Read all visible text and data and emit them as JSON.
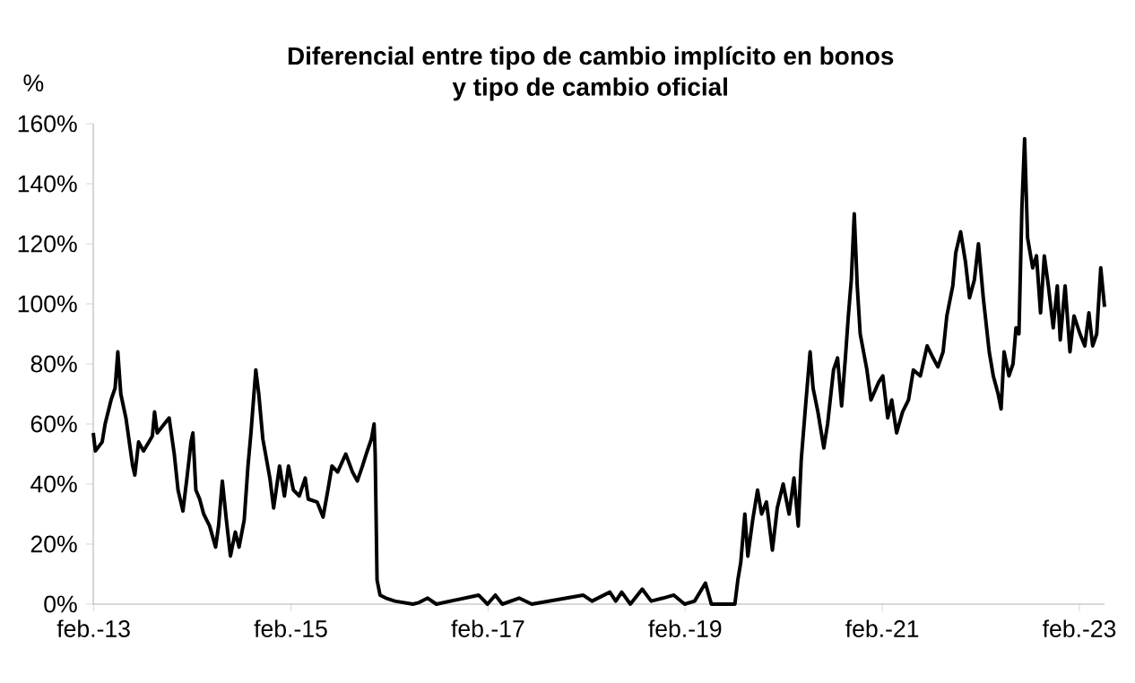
{
  "chart_data": {
    "type": "line",
    "title": "Diferencial entre tipo de cambio implícito en bonos\ny tipo de cambio oficial",
    "ylabel": "%",
    "grid": false,
    "marker": "none",
    "line_style": "solid",
    "xlim": [
      "2013-01-30",
      "2023-05-05"
    ],
    "ylim": [
      0,
      160
    ],
    "xticks": [
      {
        "value": "2013-02",
        "label": "feb.-13"
      },
      {
        "value": "2015-02",
        "label": "feb.-15"
      },
      {
        "value": "2017-02",
        "label": "feb.-17"
      },
      {
        "value": "2019-02",
        "label": "feb.-19"
      },
      {
        "value": "2021-02",
        "label": "feb.-21"
      },
      {
        "value": "2023-02",
        "label": "feb.-23"
      }
    ],
    "yticks": [
      {
        "value": 0,
        "label": "0%"
      },
      {
        "value": 20,
        "label": "20%"
      },
      {
        "value": 40,
        "label": "40%"
      },
      {
        "value": 60,
        "label": "60%"
      },
      {
        "value": 80,
        "label": "80%"
      },
      {
        "value": 100,
        "label": "100%"
      },
      {
        "value": 120,
        "label": "120%"
      },
      {
        "value": 140,
        "label": "140%"
      },
      {
        "value": 160,
        "label": "160%"
      }
    ],
    "series": [
      {
        "color": "#000000",
        "x": [
          "2013-01-30",
          "2013-02-07",
          "2013-03-04",
          "2013-03-15",
          "2013-04-06",
          "2013-04-21",
          "2013-05-01",
          "2013-05-12",
          "2013-05-31",
          "2013-06-25",
          "2013-07-03",
          "2013-07-17",
          "2013-08-04",
          "2013-09-06",
          "2013-09-14",
          "2013-09-24",
          "2013-10-20",
          "2013-11-07",
          "2013-11-26",
          "2013-12-10",
          "2013-12-28",
          "2014-01-12",
          "2014-01-27",
          "2014-02-03",
          "2014-02-14",
          "2014-02-28",
          "2014-03-15",
          "2014-04-06",
          "2014-04-28",
          "2014-05-09",
          "2014-05-23",
          "2014-06-07",
          "2014-06-22",
          "2014-07-10",
          "2014-07-24",
          "2014-08-12",
          "2014-08-26",
          "2014-09-06",
          "2014-09-24",
          "2014-10-05",
          "2014-10-20",
          "2014-11-15",
          "2014-11-29",
          "2014-12-21",
          "2015-01-08",
          "2015-01-23",
          "2015-02-10",
          "2015-03-04",
          "2015-03-26",
          "2015-04-06",
          "2015-05-09",
          "2015-05-31",
          "2015-06-18",
          "2015-07-03",
          "2015-07-24",
          "2015-08-23",
          "2015-09-17",
          "2015-10-05",
          "2015-10-24",
          "2015-11-07",
          "2015-11-26",
          "2015-12-06",
          "2015-12-10",
          "2015-12-17",
          "2015-12-28",
          "2016-01-19",
          "2016-02-21",
          "2016-04-28",
          "2016-05-20",
          "2016-06-22",
          "2016-07-24",
          "2016-12-28",
          "2017-01-30",
          "2017-02-28",
          "2017-03-26",
          "2017-05-27",
          "2017-07-13",
          "2018-01-19",
          "2018-02-21",
          "2018-04-28",
          "2018-05-20",
          "2018-06-11",
          "2018-07-13",
          "2018-08-26",
          "2018-09-28",
          "2018-11-11",
          "2018-12-21",
          "2019-01-30",
          "2019-03-08",
          "2019-04-17",
          "2019-05-09",
          "2019-08-04",
          "2019-08-15",
          "2019-08-26",
          "2019-09-10",
          "2019-09-21",
          "2019-10-09",
          "2019-10-27",
          "2019-11-11",
          "2019-11-29",
          "2019-12-21",
          "2020-01-08",
          "2020-01-30",
          "2020-02-21",
          "2020-03-10",
          "2020-03-26",
          "2020-04-06",
          "2020-04-24",
          "2020-05-09",
          "2020-05-20",
          "2020-06-07",
          "2020-06-29",
          "2020-07-13",
          "2020-08-04",
          "2020-08-19",
          "2020-09-03",
          "2020-09-17",
          "2020-09-28",
          "2020-10-09",
          "2020-10-20",
          "2020-10-31",
          "2020-11-11",
          "2020-12-06",
          "2020-12-21",
          "2021-01-19",
          "2021-02-03",
          "2021-02-21",
          "2021-03-08",
          "2021-03-26",
          "2021-04-17",
          "2021-05-09",
          "2021-05-27",
          "2021-06-22",
          "2021-07-17",
          "2021-08-08",
          "2021-08-26",
          "2021-09-14",
          "2021-09-28",
          "2021-10-20",
          "2021-10-31",
          "2021-11-18",
          "2021-12-06",
          "2021-12-21",
          "2022-01-08",
          "2022-01-23",
          "2022-02-10",
          "2022-03-04",
          "2022-03-19",
          "2022-04-06",
          "2022-04-17",
          "2022-04-28",
          "2022-05-16",
          "2022-05-31",
          "2022-06-11",
          "2022-06-22",
          "2022-07-03",
          "2022-07-13",
          "2022-07-24",
          "2022-08-12",
          "2022-08-26",
          "2022-09-10",
          "2022-09-24",
          "2022-10-09",
          "2022-10-27",
          "2022-11-11",
          "2022-11-22",
          "2022-12-10",
          "2022-12-28",
          "2023-01-12",
          "2023-02-03",
          "2023-02-21",
          "2023-03-08",
          "2023-03-22",
          "2023-04-06",
          "2023-04-21",
          "2023-05-05"
        ],
        "values": [
          57,
          51,
          54,
          60,
          68,
          72,
          84,
          70,
          62,
          46,
          43,
          54,
          51,
          56,
          64,
          57,
          60,
          62,
          50,
          38,
          31,
          42,
          54,
          57,
          38,
          35,
          30,
          26,
          19,
          26,
          41,
          28,
          16,
          24,
          19,
          28,
          46,
          57,
          78,
          70,
          55,
          42,
          32,
          46,
          36,
          46,
          38,
          36,
          42,
          35,
          34,
          29,
          38,
          46,
          44,
          50,
          44,
          41,
          46,
          50,
          55,
          60,
          50,
          8,
          3,
          2,
          1,
          0,
          0.5,
          2,
          0,
          3,
          0,
          3,
          0,
          2,
          0,
          3,
          1,
          4,
          1,
          4,
          0,
          5,
          1,
          2,
          3,
          0,
          1,
          7,
          0,
          0,
          8,
          14,
          30,
          16,
          28,
          38,
          30,
          34,
          18,
          32,
          40,
          30,
          42,
          26,
          48,
          68,
          84,
          72,
          64,
          52,
          60,
          78,
          82,
          66,
          82,
          96,
          108,
          130,
          106,
          90,
          78,
          68,
          74,
          76,
          62,
          68,
          57,
          64,
          68,
          78,
          76,
          86,
          82,
          79,
          84,
          96,
          106,
          117,
          124,
          114,
          102,
          108,
          120,
          102,
          84,
          76,
          70,
          65,
          84,
          76,
          80,
          92,
          90,
          132,
          155,
          122,
          112,
          116,
          97,
          116,
          106,
          92,
          106,
          88,
          106,
          84,
          96,
          90,
          86,
          97,
          86,
          90,
          112,
          99
        ]
      }
    ]
  }
}
